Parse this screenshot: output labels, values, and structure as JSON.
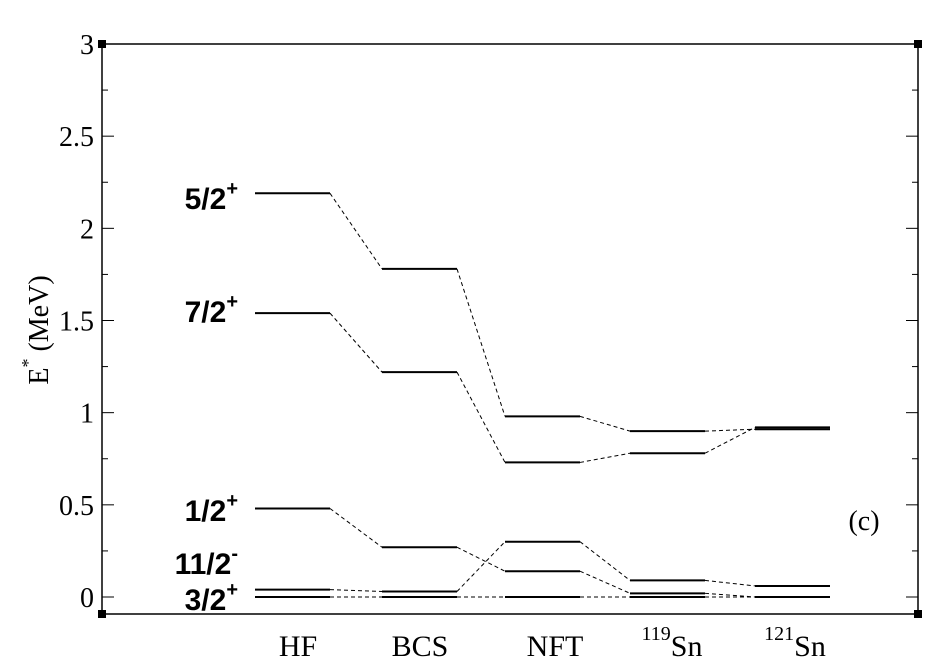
{
  "chart_data": {
    "type": "level-scheme",
    "ylabel": "E",
    "ylabel_superscript": "*",
    "ylabel_unit": "(MeV)",
    "ylim": [
      0,
      3
    ],
    "yticks": [
      "0",
      "0.5",
      "1",
      "1.5",
      "2",
      "2.5",
      "3"
    ],
    "panel_label": "(c)",
    "categories": [
      {
        "label": "HF",
        "mass": ""
      },
      {
        "label": "BCS",
        "mass": ""
      },
      {
        "label": "NFT",
        "mass": ""
      },
      {
        "label": "Sn",
        "mass": "119"
      },
      {
        "label": "Sn",
        "mass": "121"
      }
    ],
    "series": [
      {
        "name": "5/2",
        "base": "5/2",
        "sup": "+",
        "values": [
          2.19,
          1.78,
          0.98,
          0.9,
          0.91
        ]
      },
      {
        "name": "7/2",
        "base": "7/2",
        "sup": "+",
        "values": [
          1.54,
          1.22,
          0.73,
          0.78,
          0.92
        ]
      },
      {
        "name": "1/2",
        "base": "1/2",
        "sup": "+",
        "values": [
          0.48,
          0.27,
          0.14,
          0.02,
          0.0
        ]
      },
      {
        "name": "11/2",
        "base": "11/2",
        "sup": "-",
        "values": [
          0.04,
          0.03,
          0.3,
          0.09,
          0.06
        ]
      },
      {
        "name": "3/2",
        "base": "3/2",
        "sup": "+",
        "values": [
          0.0,
          0.0,
          0.0,
          0.0,
          0.0
        ]
      }
    ]
  }
}
